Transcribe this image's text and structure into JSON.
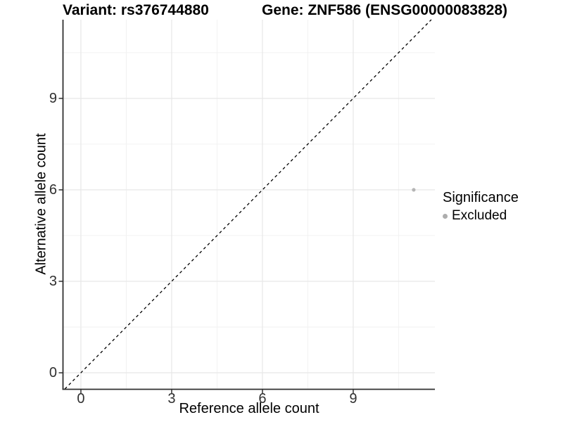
{
  "header": {
    "title_variant": "Variant: rs376744880",
    "title_gene": "Gene: ZNF586 (ENSG00000083828)"
  },
  "axes": {
    "x_label": "Reference allele count",
    "y_label": "Alternative allele count"
  },
  "legend": {
    "title": "Significance",
    "items": [
      {
        "label": "Excluded",
        "color": "#adadad"
      }
    ]
  },
  "chart_data": {
    "type": "scatter",
    "title": "Variant: rs376744880    Gene: ZNF586 (ENSG00000083828)",
    "xlabel": "Reference allele count",
    "ylabel": "Alternative allele count",
    "xlim": [
      -0.58,
      11.7
    ],
    "ylim": [
      -0.53,
      11.58
    ],
    "x_ticks": [
      0,
      3,
      6,
      9
    ],
    "y_ticks": [
      0,
      3,
      6,
      9
    ],
    "x_minor_ticks": [
      1.5,
      4.5,
      7.5,
      10.5
    ],
    "y_minor_ticks": [
      1.5,
      4.5,
      7.5,
      10.5
    ],
    "grid": true,
    "legend_position": "right",
    "identity_line": {
      "equation": "y = x",
      "style": "dashed",
      "color": "#000000"
    },
    "series": [
      {
        "name": "Excluded",
        "color": "#b5b5b5",
        "points": [
          {
            "x": 11,
            "y": 6
          }
        ]
      }
    ]
  },
  "colors": {
    "background": "#ffffff",
    "grid_major": "#e7e7e7",
    "grid_minor": "#f2f2f2",
    "axis_line": "#2f2f2f",
    "tick_mark": "#2f2f2f",
    "tick_text": "#303030",
    "point": "#b5b5b5"
  }
}
